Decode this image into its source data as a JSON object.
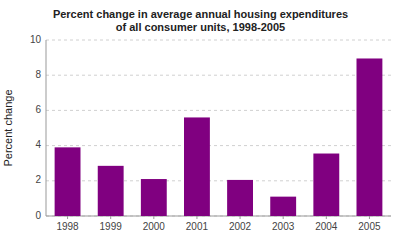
{
  "chart_data": {
    "type": "bar",
    "title": "Percent change in average annual housing expenditures\nof all consumer units, 1998-2005",
    "ylabel": "Percent change",
    "categories": [
      "1998",
      "1999",
      "2000",
      "2001",
      "2002",
      "2003",
      "2004",
      "2005"
    ],
    "values": [
      3.9,
      2.85,
      2.1,
      5.6,
      2.05,
      1.1,
      3.55,
      8.95
    ],
    "color": "#800080",
    "ylim": [
      0,
      10
    ],
    "yticks": [
      0,
      2,
      4,
      6,
      8,
      10
    ],
    "grid": true
  }
}
